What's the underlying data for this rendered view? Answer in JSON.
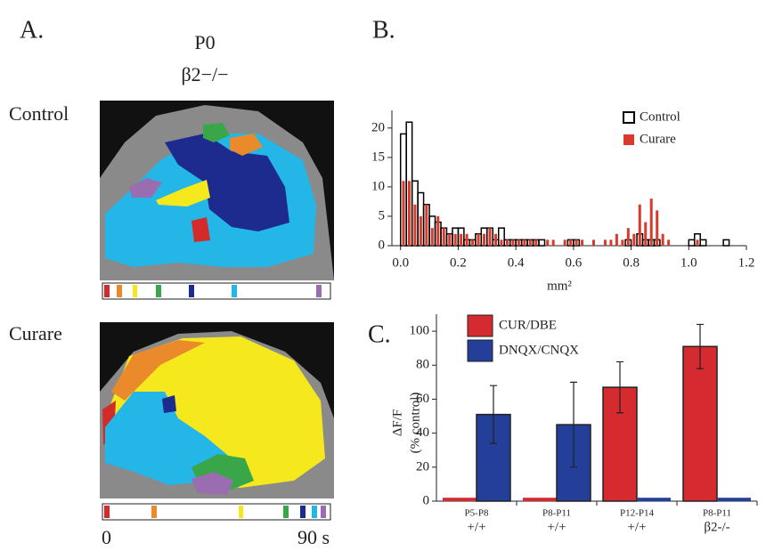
{
  "panel_a": {
    "label": "A.",
    "age": "P0",
    "genotype": "β2−/−",
    "control_label": "Control",
    "curare_label": "Curare",
    "scale_start": "0",
    "scale_end": "90 s"
  },
  "chart_data": [
    {
      "type": "histogram",
      "panel_label": "B.",
      "x_label": "mm²",
      "bins": [
        0,
        0.02,
        0.04,
        0.06,
        0.08,
        0.1,
        0.12,
        0.14,
        0.16,
        0.18,
        0.2,
        0.22,
        0.24,
        0.26,
        0.28,
        0.3,
        0.32,
        0.34,
        0.36,
        0.38,
        0.4,
        0.42,
        0.44,
        0.46,
        0.48,
        0.5,
        0.52,
        0.54,
        0.56,
        0.58,
        0.6,
        0.62,
        0.64,
        0.66,
        0.68,
        0.7,
        0.72,
        0.74,
        0.76,
        0.78,
        0.8,
        0.82,
        0.84,
        0.86,
        0.88,
        0.9,
        0.92,
        0.94,
        0.96,
        0.98,
        1,
        1.02,
        1.04,
        1.06,
        1.08,
        1.1,
        1.12,
        1.14,
        1.16
      ],
      "series": [
        {
          "name": "Control",
          "color": "#000000",
          "values": [
            19,
            21,
            11,
            9,
            7,
            5,
            4,
            3,
            2,
            3,
            3,
            1,
            1,
            2,
            3,
            3,
            1,
            3,
            1,
            1,
            1,
            1,
            1,
            1,
            1,
            0,
            0,
            0,
            0,
            1,
            1,
            0,
            0,
            0,
            0,
            0,
            0,
            0,
            0,
            1,
            0,
            2,
            1,
            1,
            1,
            0,
            0,
            0,
            0,
            0,
            1,
            2,
            1,
            0,
            0,
            0,
            1,
            0
          ]
        },
        {
          "name": "Curare",
          "color": "#d93a2b",
          "values": [
            11,
            11,
            7,
            5,
            7,
            3,
            5,
            3,
            2,
            2,
            2,
            2,
            1,
            2,
            2,
            3,
            2,
            1,
            1,
            1,
            1,
            1,
            1,
            1,
            0,
            1,
            1,
            0,
            1,
            1,
            1,
            1,
            0,
            1,
            0,
            1,
            1,
            2,
            1,
            3,
            2,
            7,
            4,
            8,
            6,
            2,
            1,
            0,
            0,
            0,
            0,
            1,
            0,
            0,
            0,
            0,
            0,
            0
          ]
        }
      ],
      "xlim": [
        -0.03,
        1.2
      ],
      "xticks": [
        {
          "value": 0,
          "label": "0.0"
        },
        0.2,
        0.4,
        0.6,
        0.8,
        {
          "value": 1,
          "label": "1.0"
        },
        1.2
      ],
      "ylim": [
        0,
        23
      ],
      "yticks": [
        0,
        5,
        10,
        15,
        20
      ]
    },
    {
      "type": "bar",
      "panel_label": "C.",
      "y_label": "ΔF/F",
      "y_sublabel": "(% control)",
      "categories": [
        "P5-P8",
        "P8-P11",
        "P12-P14",
        "P8-P11"
      ],
      "genotypes": [
        "+/+",
        "+/+",
        "+/+",
        "β2-/-"
      ],
      "series": [
        {
          "name": "CUR/DBE",
          "color": "#d42a30",
          "values": [
            2,
            2,
            67,
            91
          ],
          "errors": [
            null,
            null,
            15,
            13
          ]
        },
        {
          "name": "DNQX/CNQX",
          "color": "#243f99",
          "values": [
            51,
            45,
            2,
            2
          ],
          "errors": [
            17,
            25,
            null,
            null
          ]
        }
      ],
      "ylim": [
        0,
        110
      ],
      "yticks": [
        0,
        20,
        40,
        60,
        80,
        100
      ]
    }
  ]
}
